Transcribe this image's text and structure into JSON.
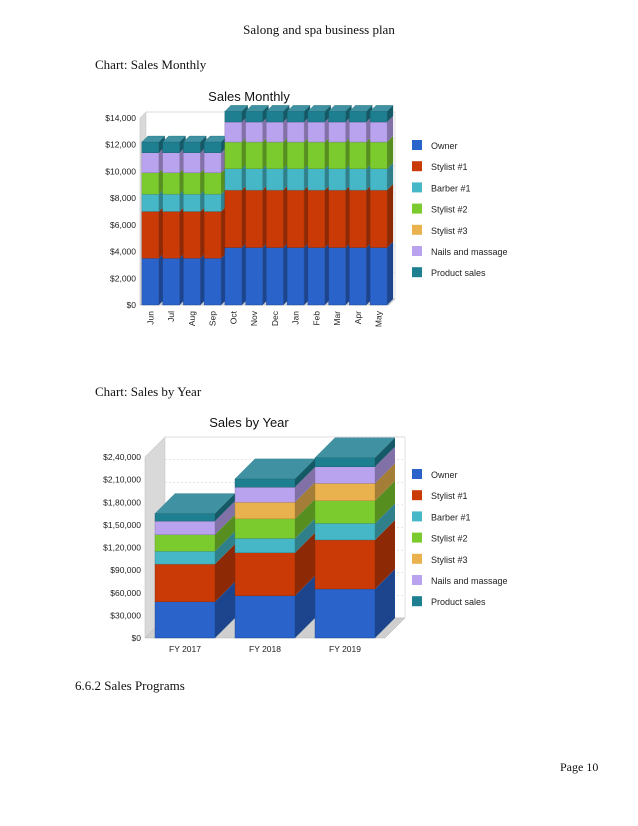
{
  "header": {
    "title": "Salong and spa business plan"
  },
  "captions": {
    "monthly": "Chart: Sales Monthly",
    "year": "Chart: Sales by Year"
  },
  "section": {
    "heading": "6.6.2 Sales Programs"
  },
  "footer": {
    "page": "Page 10"
  },
  "series_colors": [
    "#2a63c9",
    "#c93a06",
    "#45b7c6",
    "#7ccb2e",
    "#eab24f",
    "#b9a2ee",
    "#1e7f91"
  ],
  "chart_data": [
    {
      "type": "bar",
      "stacked": true,
      "title": "Sales Monthly",
      "categories": [
        "Jun",
        "Jul",
        "Aug",
        "Sep",
        "Oct",
        "Nov",
        "Dec",
        "Jan",
        "Feb",
        "Mar",
        "Apr",
        "May"
      ],
      "ylim": [
        0,
        14000
      ],
      "yticks": [
        0,
        2000,
        4000,
        6000,
        8000,
        10000,
        12000,
        14000
      ],
      "ytick_labels": [
        "$0",
        "$2,000",
        "$4,000",
        "$6,000",
        "$8,000",
        "$10,000",
        "$12,000",
        "$14,000"
      ],
      "legend_position": "right",
      "series": [
        {
          "name": "Owner",
          "values": [
            3500,
            3500,
            3500,
            3500,
            4300,
            4300,
            4300,
            4300,
            4300,
            4300,
            4300,
            4300
          ]
        },
        {
          "name": "Stylist #1",
          "values": [
            3500,
            3500,
            3500,
            3500,
            4300,
            4300,
            4300,
            4300,
            4300,
            4300,
            4300,
            4300
          ]
        },
        {
          "name": "Barber #1",
          "values": [
            1300,
            1300,
            1300,
            1300,
            1600,
            1600,
            1600,
            1600,
            1600,
            1600,
            1600,
            1600
          ]
        },
        {
          "name": "Stylist #2",
          "values": [
            1600,
            1600,
            1600,
            1600,
            2000,
            2000,
            2000,
            2000,
            2000,
            2000,
            2000,
            2000
          ]
        },
        {
          "name": "Stylist #3",
          "values": [
            0,
            0,
            0,
            0,
            0,
            0,
            0,
            0,
            0,
            0,
            0,
            0
          ]
        },
        {
          "name": "Nails and massage",
          "values": [
            1500,
            1500,
            1500,
            1500,
            1500,
            1500,
            1500,
            1500,
            1500,
            1500,
            1500,
            1500
          ]
        },
        {
          "name": "Product sales",
          "values": [
            800,
            800,
            800,
            800,
            800,
            800,
            800,
            800,
            800,
            800,
            800,
            800
          ]
        }
      ]
    },
    {
      "type": "bar",
      "stacked": true,
      "title": "Sales by Year",
      "categories": [
        "FY 2017",
        "FY 2018",
        "FY 2019"
      ],
      "ylim": [
        0,
        240000
      ],
      "yticks": [
        0,
        30000,
        60000,
        90000,
        120000,
        150000,
        180000,
        210000,
        240000
      ],
      "ytick_labels": [
        "$0",
        "$30,000",
        "$60,000",
        "$90,000",
        "$1,20,000",
        "$1,50,000",
        "$1,80,000",
        "$2,10,000",
        "$2,40,000"
      ],
      "legend_position": "right",
      "series": [
        {
          "name": "Owner",
          "values": [
            48000,
            56000,
            65000
          ]
        },
        {
          "name": "Stylist #1",
          "values": [
            50000,
            57000,
            65000
          ]
        },
        {
          "name": "Barber #1",
          "values": [
            17000,
            19000,
            22000
          ]
        },
        {
          "name": "Stylist #2",
          "values": [
            22000,
            26000,
            30000
          ]
        },
        {
          "name": "Stylist #3",
          "values": [
            0,
            22000,
            23000
          ]
        },
        {
          "name": "Nails and massage",
          "values": [
            18000,
            20000,
            22000
          ]
        },
        {
          "name": "Product sales",
          "values": [
            10000,
            11000,
            12000
          ]
        }
      ]
    }
  ]
}
